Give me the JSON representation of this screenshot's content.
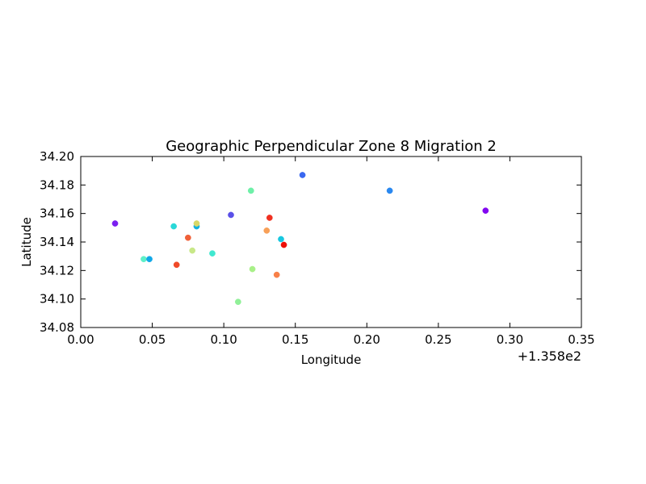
{
  "chart_data": {
    "type": "scatter",
    "title": "Geographic Perpendicular Zone 8 Migration 2",
    "xlabel": "Longitude",
    "ylabel": "Latitude",
    "x_offset_label": "+1.358e2",
    "xlim": [
      0.0,
      0.35
    ],
    "ylim": [
      34.08,
      34.2
    ],
    "x_ticks": [
      "0.00",
      "0.05",
      "0.10",
      "0.15",
      "0.20",
      "0.25",
      "0.30",
      "0.35"
    ],
    "y_ticks": [
      "34.08",
      "34.10",
      "34.12",
      "34.14",
      "34.16",
      "34.18",
      "34.20"
    ],
    "grid": false,
    "points": [
      {
        "x": 0.024,
        "y": 34.153,
        "color": "#7b1ff0"
      },
      {
        "x": 0.044,
        "y": 34.128,
        "color": "#5ef0c8"
      },
      {
        "x": 0.048,
        "y": 34.128,
        "color": "#10a8e8"
      },
      {
        "x": 0.065,
        "y": 34.151,
        "color": "#2ad8d8"
      },
      {
        "x": 0.067,
        "y": 34.124,
        "color": "#f04a28"
      },
      {
        "x": 0.075,
        "y": 34.143,
        "color": "#f06038"
      },
      {
        "x": 0.078,
        "y": 34.134,
        "color": "#c8e888"
      },
      {
        "x": 0.081,
        "y": 34.151,
        "color": "#10b0e0"
      },
      {
        "x": 0.081,
        "y": 34.153,
        "color": "#d8d868"
      },
      {
        "x": 0.092,
        "y": 34.132,
        "color": "#40e8d0"
      },
      {
        "x": 0.105,
        "y": 34.159,
        "color": "#5a50e8"
      },
      {
        "x": 0.11,
        "y": 34.098,
        "color": "#90f098"
      },
      {
        "x": 0.119,
        "y": 34.176,
        "color": "#6ef0a8"
      },
      {
        "x": 0.12,
        "y": 34.121,
        "color": "#a8f088"
      },
      {
        "x": 0.13,
        "y": 34.148,
        "color": "#f8a058"
      },
      {
        "x": 0.132,
        "y": 34.157,
        "color": "#f03020"
      },
      {
        "x": 0.137,
        "y": 34.117,
        "color": "#f88048"
      },
      {
        "x": 0.14,
        "y": 34.142,
        "color": "#18c8e0"
      },
      {
        "x": 0.142,
        "y": 34.138,
        "color": "#ee0f08"
      },
      {
        "x": 0.155,
        "y": 34.187,
        "color": "#3a68f0"
      },
      {
        "x": 0.216,
        "y": 34.176,
        "color": "#2a88f0"
      },
      {
        "x": 0.283,
        "y": 34.162,
        "color": "#8208f0"
      }
    ]
  }
}
